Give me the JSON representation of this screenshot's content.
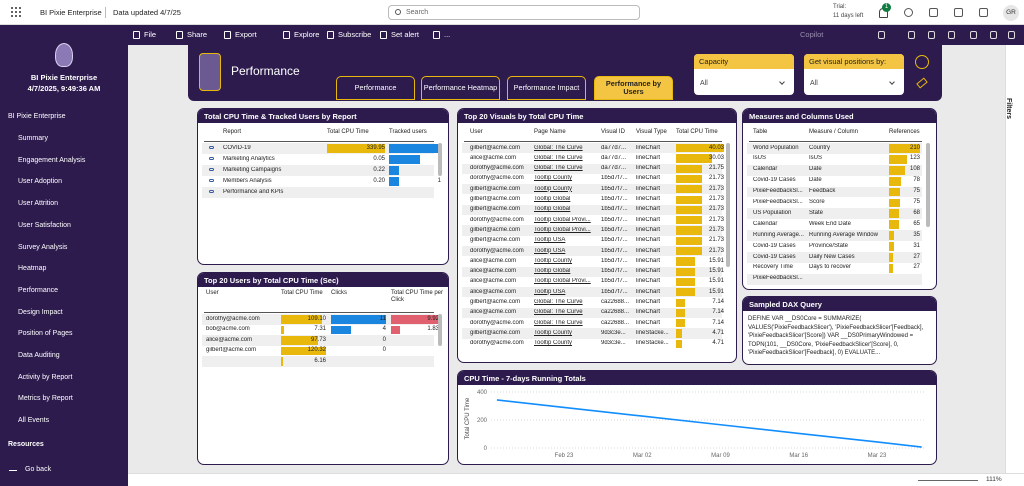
{
  "topbar": {
    "app": "BI Pixie Enterprise",
    "updated": "Data updated 4/7/25",
    "search": "Search",
    "trial": "Trial:",
    "trial_days": "11 days left",
    "notifications": "1",
    "avatar": "GR",
    "zoom": "111%"
  },
  "toolbar": {
    "items": [
      "File",
      "Share",
      "Export",
      "Explore",
      "Subscribe",
      "Set alert",
      "..."
    ],
    "copilot": "Copilot",
    "filters": "Filters"
  },
  "nav": {
    "title": "BI Pixie Enterprise",
    "timestamp": "4/7/2025, 9:49:36 AM",
    "section": "BI Pixie Enterprise",
    "items": [
      "Summary",
      "Engagement Analysis",
      "User Adoption",
      "User Attrition",
      "User Satisfaction",
      "Survey Analysis",
      "Heatmap",
      "Performance",
      "Design Impact",
      "Position of Pages",
      "Data Auditing",
      "Activity by Report",
      "Metrics by Report",
      "All Events"
    ],
    "resources": "Resources",
    "back": "Go back"
  },
  "header": {
    "title": "Performance",
    "tabs": [
      "Performance",
      "Performance Heatmap",
      "Performance Impact",
      "Performance by Users"
    ],
    "active_tab": 3,
    "slicers": [
      {
        "label": "Capacity",
        "value": "All"
      },
      {
        "label": "Get visual positions by:",
        "value": "All"
      }
    ]
  },
  "reports_table": {
    "title": "Total CPU Time & Tracked Users by Report",
    "columns": [
      "Report",
      "Total CPU Time",
      "Tracked users"
    ],
    "rows": [
      [
        "COVID-19",
        339.95,
        5
      ],
      [
        "Marketing Analytics",
        0.05,
        3
      ],
      [
        "Marketing Campaigns",
        0.22,
        1
      ],
      [
        "Members Analysis",
        {
          "value": 0.2,
          "label": "0.20"
        },
        1
      ],
      [
        "Performance and KPIs",
        null,
        null
      ]
    ]
  },
  "users_table": {
    "title": "Top 20 Users by Total CPU Time (Sec)",
    "columns": [
      "User",
      "Total CPU Time",
      "Clicks",
      "Total CPU Time per Click"
    ],
    "rows": [
      [
        "dorothy@acme.com",
        {
          "value": 109.1,
          "label": "109.10"
        },
        11,
        9.92
      ],
      [
        "bob@acme.com",
        7.31,
        4,
        1.83
      ],
      [
        "alice@acme.com",
        97.73,
        0,
        null
      ],
      [
        "gilbert@acme.com",
        120.32,
        0,
        null
      ],
      [
        null,
        6.16,
        null,
        null
      ]
    ]
  },
  "visuals_table": {
    "title": "Top 20 Visuals by Total CPU Time",
    "columns": [
      "User",
      "Page Name",
      "Visual ID",
      "Visual Type",
      "Total CPU Time"
    ],
    "rows": [
      [
        "gilbert@acme.com",
        "Global: The Curve",
        "da77d7...",
        "lineChart",
        40.03
      ],
      [
        "alice@acme.com",
        "Global: The Curve",
        "da77d7...",
        "lineChart",
        30.03
      ],
      [
        "dorothy@acme.com",
        "Global: The Curve",
        "da77d7...",
        "lineChart",
        21.75
      ],
      [
        "dorothy@acme.com",
        "Tooltip County",
        "1b5d7f7...",
        "lineChart",
        21.73
      ],
      [
        "gilbert@acme.com",
        "Tooltip County",
        "1b5d7f7...",
        "lineChart",
        21.73
      ],
      [
        "gilbert@acme.com",
        "Tooltip Global",
        "1b5d7f7...",
        "lineChart",
        21.73
      ],
      [
        "gilbert@acme.com",
        "Tooltip Global",
        "1b5d7f7...",
        "lineChart",
        21.73
      ],
      [
        "dorothy@acme.com",
        "Tooltip Global Provi...",
        "1b5d7f7...",
        "lineChart",
        21.73
      ],
      [
        "gilbert@acme.com",
        "Tooltip Global Provi...",
        "1b5d7f7...",
        "lineChart",
        21.73
      ],
      [
        "gilbert@acme.com",
        "Tooltip USA",
        "1b5d7f7...",
        "lineChart",
        21.73
      ],
      [
        "dorothy@acme.com",
        "Tooltip USA",
        "1b5d7f7...",
        "lineChart",
        21.73
      ],
      [
        "alice@acme.com",
        "Tooltip County",
        "1b5d7f7...",
        "lineChart",
        15.91
      ],
      [
        "alice@acme.com",
        "Tooltip Global",
        "1b5d7f7...",
        "lineChart",
        15.91
      ],
      [
        "alice@acme.com",
        "Tooltip Global Provi...",
        "1b5d7f7...",
        "lineChart",
        15.91
      ],
      [
        "alice@acme.com",
        "Tooltip USA",
        "1b5d7f7...",
        "lineChart",
        15.91
      ],
      [
        "gilbert@acme.com",
        "Global: The Curve",
        "ca22688...",
        "lineChart",
        7.14
      ],
      [
        "alice@acme.com",
        "Global: The Curve",
        "ca22688...",
        "lineChart",
        7.14
      ],
      [
        "dorothy@acme.com",
        "Global: The Curve",
        "ca22688...",
        "lineChart",
        7.14
      ],
      [
        "gilbert@acme.com",
        "Tooltip County",
        "9d3c3e...",
        "lineStacke...",
        4.71
      ],
      [
        "dorothy@acme.com",
        "Tooltip County",
        "9d3c3e...",
        "lineStacke...",
        4.71
      ]
    ]
  },
  "measures_table": {
    "title": "Measures and Columns Used",
    "columns": [
      "Table",
      "Measure / Column",
      "References"
    ],
    "rows": [
      [
        "World Population",
        "Country",
        210
      ],
      [
        "IsUS",
        "IsUS",
        123
      ],
      [
        "Calendar",
        "Date",
        108
      ],
      [
        "Covid-19 Cases",
        "Date",
        78
      ],
      [
        "PixieFeedbackSl...",
        "Feedback",
        75
      ],
      [
        "PixieFeedbackSl...",
        "Score",
        75
      ],
      [
        "US Population",
        "State",
        68
      ],
      [
        "Calendar",
        "Week End Date",
        65
      ],
      [
        "Running Average...",
        "Running Average Window",
        35
      ],
      [
        "Covid-19 Cases",
        "Province/State",
        31
      ],
      [
        "Covid-19 Cases",
        "Daily New Cases",
        27
      ],
      [
        "Recovery Time",
        "Days to recover",
        27
      ],
      [
        "PixieFeedbackSl...",
        null,
        null
      ]
    ]
  },
  "dax": {
    "title": "Sampled DAX Query",
    "lines": [
      "DEFINE VAR __DS0Core = SUMMARIZE(",
      "VALUES('PixieFeedbackSlicer'), 'PixieFeedbackSlicer'[Feedback],",
      "'PixieFeedbackSlicer'[Score]) VAR __DS0PrimaryWindowed =",
      "TOPN(101, __DS0Core, 'PixieFeedbackSlicer'[Score], 0,",
      "'PixieFeedbackSlicer'[Feedback], 0) EVALUATE..."
    ]
  },
  "chart_data": {
    "type": "line",
    "title": "CPU Time - 7-days Running Totals",
    "y_label": "Total CPU Time",
    "categories": [
      null,
      "Feb 23",
      "Mar 02",
      "Mar 09",
      "Mar 16",
      "Mar 23",
      null
    ],
    "values": [
      343,
      290,
      228,
      166,
      104,
      43,
      7
    ],
    "color": "#118dff",
    "ylim": [
      0,
      420
    ],
    "yticks": [
      0,
      200,
      400
    ],
    "grid": true
  }
}
